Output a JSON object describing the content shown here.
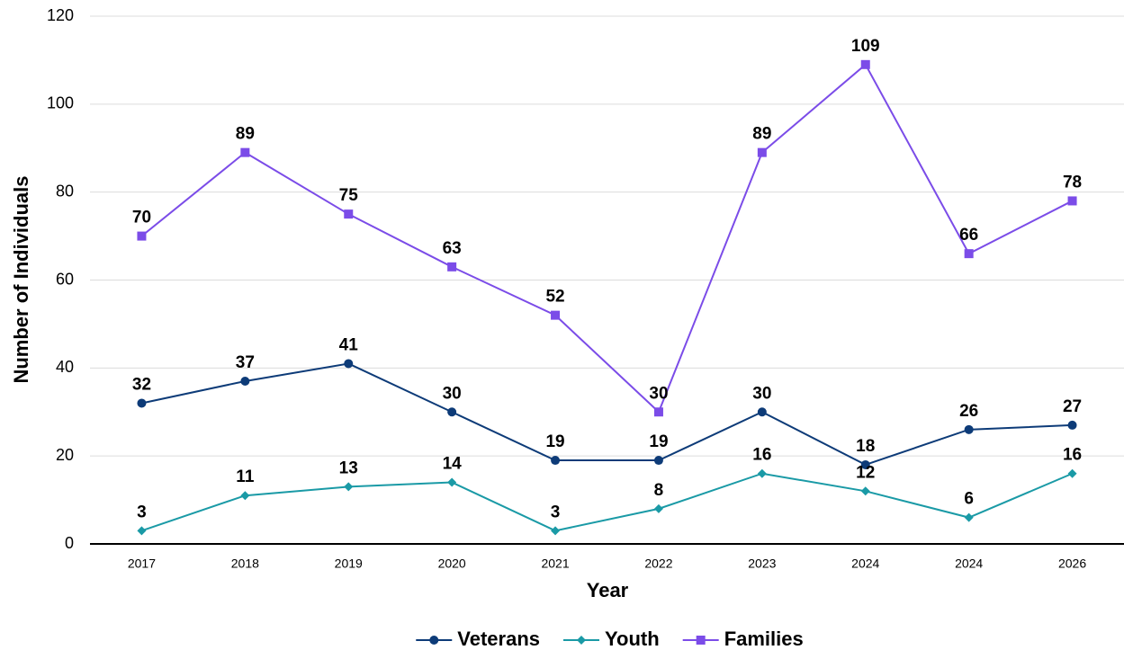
{
  "chart_data": {
    "type": "line",
    "xlabel": "Year",
    "ylabel": "Number of Individuals",
    "categories": [
      "2017",
      "2018",
      "2019",
      "2020",
      "2021",
      "2022",
      "2023",
      "2024",
      "2024",
      "2026"
    ],
    "series": [
      {
        "name": "Veterans",
        "color": "#0d3b78",
        "marker": "circle",
        "values": [
          32,
          37,
          41,
          30,
          19,
          19,
          30,
          18,
          26,
          27
        ]
      },
      {
        "name": "Youth",
        "color": "#1a9aa6",
        "marker": "diamond",
        "values": [
          3,
          11,
          13,
          14,
          3,
          8,
          16,
          12,
          6,
          16
        ]
      },
      {
        "name": "Families",
        "color": "#7b4ce8",
        "marker": "square",
        "values": [
          70,
          89,
          75,
          63,
          52,
          30,
          89,
          109,
          66,
          78
        ]
      }
    ],
    "ylim": [
      0,
      120
    ],
    "yticks": [
      0,
      20,
      40,
      60,
      80,
      100,
      120
    ],
    "grid": true,
    "legend": "bottom"
  }
}
